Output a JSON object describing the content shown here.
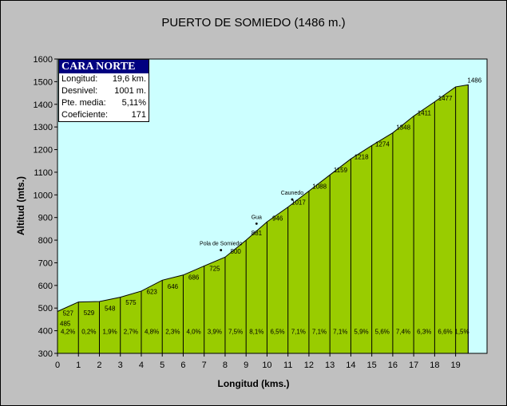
{
  "chart_data": {
    "type": "area",
    "title": "PUERTO DE SOMIEDO (1486 m.)",
    "xlabel": "Longitud (kms.)",
    "ylabel": "Altitud (mts.)",
    "xlim": [
      0,
      20.5
    ],
    "ylim": [
      300,
      1600
    ],
    "x_ticks": [
      "0",
      "1",
      "2",
      "3",
      "4",
      "5",
      "6",
      "7",
      "8",
      "9",
      "10",
      "11",
      "12",
      "13",
      "14",
      "15",
      "16",
      "17",
      "18",
      "19"
    ],
    "y_ticks": [
      "300",
      "400",
      "500",
      "600",
      "700",
      "800",
      "900",
      "1000",
      "1100",
      "1200",
      "1300",
      "1400",
      "1500",
      "1600"
    ],
    "x": [
      0,
      1,
      2,
      3,
      4,
      5,
      6,
      7,
      8,
      9,
      10,
      11,
      12,
      13,
      14,
      15,
      16,
      17,
      18,
      19,
      19.6
    ],
    "altitudes": [
      485,
      527,
      529,
      548,
      575,
      623,
      646,
      686,
      725,
      800,
      881,
      946,
      1017,
      1088,
      1159,
      1218,
      1274,
      1348,
      1411,
      1477,
      1486
    ],
    "altitude_labels": [
      "485",
      "527",
      "529",
      "548",
      "575",
      "623",
      "646",
      "686",
      "725",
      "800",
      "881",
      "946",
      "1017",
      "1088",
      "1159",
      "1218",
      "1274",
      "1348",
      "1411",
      "1477",
      "1486"
    ],
    "gradients": [
      "4,2%",
      "0,2%",
      "1,9%",
      "2,7%",
      "4,8%",
      "2,3%",
      "4,0%",
      "3,9%",
      "7,5%",
      "8,1%",
      "6,5%",
      "7,1%",
      "7,1%",
      "7,1%",
      "5,9%",
      "5,6%",
      "7,4%",
      "6,3%",
      "6,6%",
      "1,5%"
    ],
    "places": [
      {
        "name": "Pola de Somiedo",
        "x": 7.8,
        "altitude": 756
      },
      {
        "name": "Gua",
        "x": 9.5,
        "altitude": 873
      },
      {
        "name": "Caunedo",
        "x": 11.2,
        "altitude": 980
      }
    ],
    "sky_color": "#ccffff",
    "profile_color": "#99cc00"
  },
  "info": {
    "header": "CARA NORTE",
    "rows": [
      {
        "label": "Longitud:",
        "value": "19,6 km."
      },
      {
        "label": "Desnivel:",
        "value": "1001 m."
      },
      {
        "label": "Pte. media:",
        "value": "5,11%"
      },
      {
        "label": "Coeficiente:",
        "value": "171"
      }
    ]
  }
}
